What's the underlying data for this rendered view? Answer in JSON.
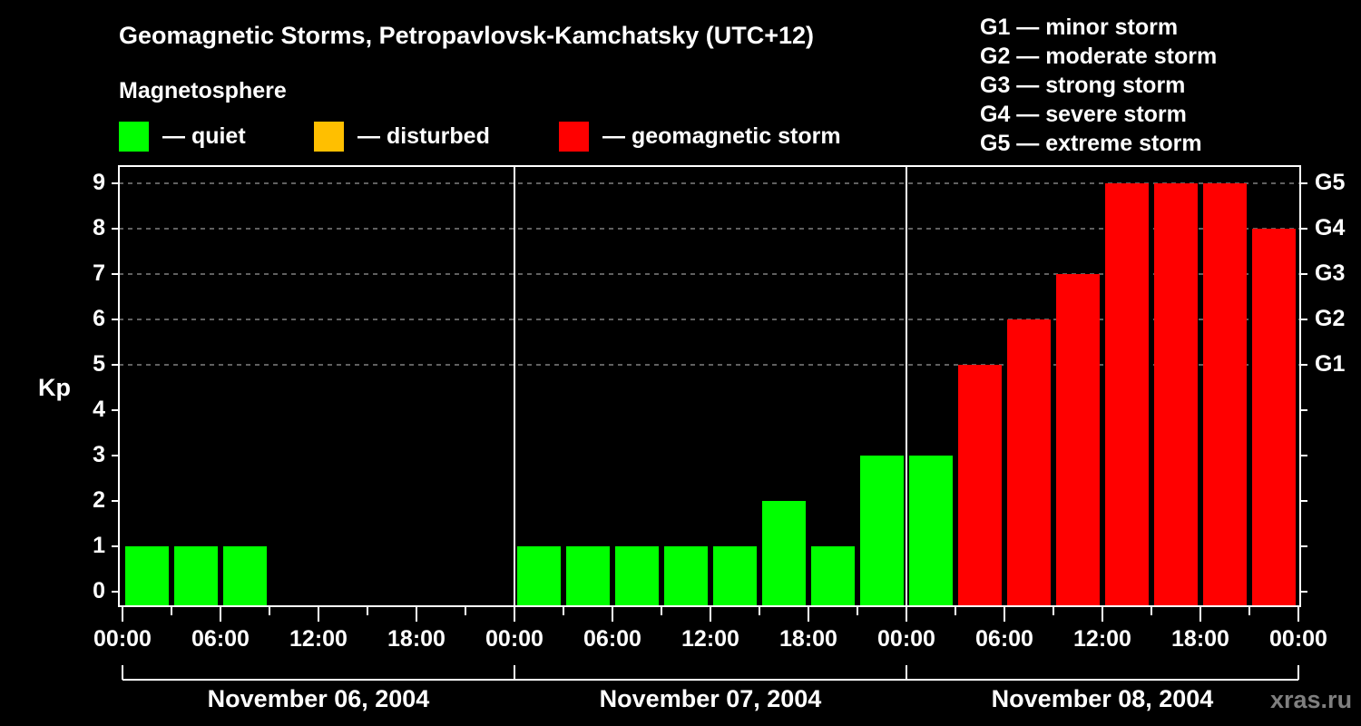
{
  "header": {
    "title": "Geomagnetic Storms, Petropavlovsk-Kamchatsky (UTC+12)",
    "subtitle": "Magnetosphere"
  },
  "legend": {
    "items": [
      {
        "label": "— quiet",
        "color": "#00ff00"
      },
      {
        "label": "— disturbed",
        "color": "#ffbf00"
      },
      {
        "label": "— geomagnetic storm",
        "color": "#ff0000"
      }
    ],
    "g_scale": [
      "G1 — minor storm",
      "G2 — moderate storm",
      "G3 — strong storm",
      "G4 — severe storm",
      "G5 — extreme storm"
    ]
  },
  "axes": {
    "ylabel": "Kp",
    "yticks": [
      "0",
      "1",
      "2",
      "3",
      "4",
      "5",
      "6",
      "7",
      "8",
      "9"
    ],
    "g_ticks": [
      {
        "kp": 5,
        "label": "G1"
      },
      {
        "kp": 6,
        "label": "G2"
      },
      {
        "kp": 7,
        "label": "G3"
      },
      {
        "kp": 8,
        "label": "G4"
      },
      {
        "kp": 9,
        "label": "G5"
      }
    ],
    "xticks": [
      "00:00",
      "06:00",
      "12:00",
      "18:00",
      "00:00",
      "06:00",
      "12:00",
      "18:00",
      "00:00",
      "06:00",
      "12:00",
      "18:00",
      "00:00"
    ],
    "dates": [
      "November 06, 2004",
      "November 07, 2004",
      "November 08, 2004"
    ]
  },
  "watermark": "xras.ru",
  "chart_data": {
    "type": "bar",
    "title": "Geomagnetic Storms, Petropavlovsk-Kamchatsky (UTC+12)",
    "xlabel": "",
    "ylabel": "Kp",
    "ylim": [
      0,
      9
    ],
    "grid": "dashed horizontal at Kp 5-9",
    "legend_position": "top",
    "colors": {
      "quiet": "#00ff00",
      "disturbed": "#ffbf00",
      "storm": "#ff0000"
    },
    "categories": [
      "Nov 06 00:00",
      "Nov 06 03:00",
      "Nov 06 06:00",
      "Nov 06 09:00",
      "Nov 06 12:00",
      "Nov 06 15:00",
      "Nov 06 18:00",
      "Nov 06 21:00",
      "Nov 07 00:00",
      "Nov 07 03:00",
      "Nov 07 06:00",
      "Nov 07 09:00",
      "Nov 07 12:00",
      "Nov 07 15:00",
      "Nov 07 18:00",
      "Nov 07 21:00",
      "Nov 08 00:00",
      "Nov 08 03:00",
      "Nov 08 06:00",
      "Nov 08 09:00",
      "Nov 08 12:00",
      "Nov 08 15:00",
      "Nov 08 18:00",
      "Nov 08 21:00"
    ],
    "values": [
      1,
      1,
      1,
      null,
      null,
      null,
      null,
      null,
      1,
      1,
      1,
      1,
      1,
      2,
      1,
      3,
      3,
      5,
      6,
      7,
      9,
      9,
      9,
      8
    ],
    "status": [
      "quiet",
      "quiet",
      "quiet",
      null,
      null,
      null,
      null,
      null,
      "quiet",
      "quiet",
      "quiet",
      "quiet",
      "quiet",
      "quiet",
      "quiet",
      "quiet",
      "quiet",
      "storm",
      "storm",
      "storm",
      "storm",
      "storm",
      "storm",
      "storm"
    ]
  }
}
